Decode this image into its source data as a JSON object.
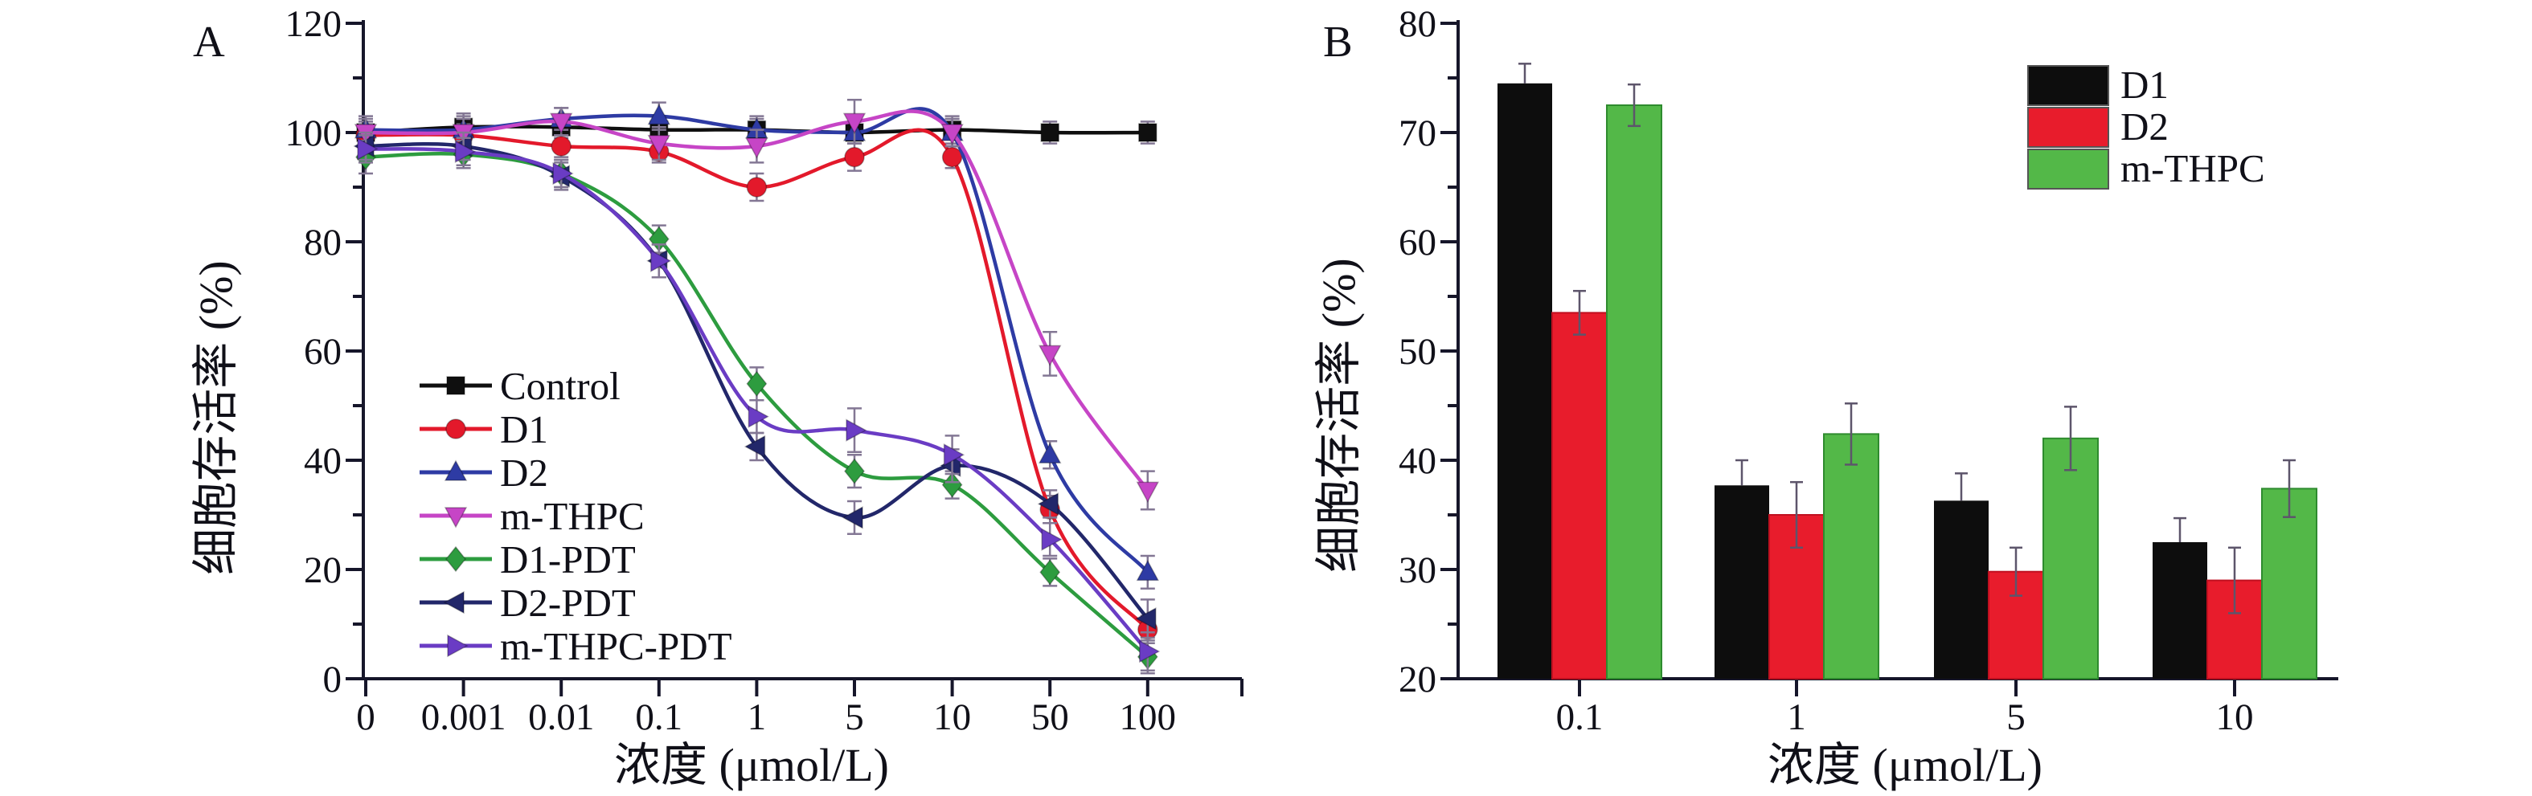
{
  "figure": {
    "background": "#ffffff",
    "axis_color": "#16162a",
    "description_visible_text_only": true
  },
  "chart_data": [
    {
      "panel_label": "A",
      "type": "line",
      "title": "",
      "xlabel": "浓度 (μmol/L)",
      "ylabel": "细胞存活率 (%)",
      "x_tick_labels": [
        "0",
        "0.001",
        "0.01",
        "0.1",
        "1",
        "5",
        "10",
        "50",
        "100"
      ],
      "y_tick_labels": [
        "0",
        "20",
        "40",
        "60",
        "80",
        "100",
        "120"
      ],
      "ylim": [
        0,
        120
      ],
      "y_major_step": 20,
      "y_minor_step": 10,
      "x_scale": "categorical concentration steps",
      "grid": "off",
      "legend_position": "inside lower-left",
      "error_bar_color": "#837794",
      "series": [
        {
          "name": "Control",
          "color": "#0f0f0f",
          "marker": "square",
          "values": [
            100,
            101,
            101,
            100.5,
            100.5,
            100,
            100.5,
            100,
            100
          ],
          "err": [
            2,
            2.5,
            2,
            2,
            2,
            2,
            2.5,
            2,
            2
          ]
        },
        {
          "name": "D1",
          "color": "#e3192b",
          "marker": "circle",
          "values": [
            99.5,
            99.5,
            97.5,
            96.5,
            90,
            95.5,
            95.5,
            31,
            9
          ],
          "err": [
            2,
            2,
            2,
            2,
            2.5,
            2.5,
            2,
            2.5,
            2.5
          ]
        },
        {
          "name": "D2",
          "color": "#2e3ba4",
          "marker": "triangle-up",
          "values": [
            100.5,
            100.5,
            102.5,
            103,
            100.5,
            100,
            100,
            41,
            19.5
          ],
          "err": [
            2.5,
            2.5,
            2,
            2.5,
            2.5,
            2,
            2.5,
            2.5,
            3
          ]
        },
        {
          "name": "m-THPC",
          "color": "#c645c6",
          "marker": "triangle-down",
          "values": [
            100,
            100,
            102,
            98,
            97.5,
            102,
            100,
            59.5,
            34.5
          ],
          "err": [
            2.5,
            2.5,
            2.5,
            3,
            3,
            4,
            2.5,
            4,
            3.5
          ]
        },
        {
          "name": "D1-PDT",
          "color": "#2d9c3f",
          "marker": "diamond",
          "values": [
            95.5,
            96,
            92.5,
            80.5,
            54,
            38,
            35.5,
            19.5,
            4
          ],
          "err": [
            3,
            2.5,
            2.5,
            2.5,
            3,
            3,
            2.5,
            2.5,
            3
          ]
        },
        {
          "name": "D2-PDT",
          "color": "#22276a",
          "marker": "triangle-left",
          "values": [
            97.5,
            97.5,
            92,
            76.5,
            42.5,
            29.5,
            39,
            32,
            11
          ],
          "err": [
            2.5,
            2.5,
            2.5,
            3,
            2.5,
            3,
            3,
            2.5,
            3.5
          ]
        },
        {
          "name": "m-THPC-PDT",
          "color": "#6a3cc4",
          "marker": "triangle-right",
          "values": [
            97,
            96.5,
            92.5,
            76.5,
            48,
            45.5,
            41,
            25.5,
            5
          ],
          "err": [
            2.5,
            2.5,
            2.5,
            3,
            3,
            4,
            3.5,
            3,
            3.5
          ]
        }
      ]
    },
    {
      "panel_label": "B",
      "type": "bar",
      "title": "",
      "xlabel": "浓度 (μmol/L)",
      "ylabel": "细胞存活率 (%)",
      "categories": [
        "0.1",
        "1",
        "5",
        "10"
      ],
      "y_tick_labels": [
        "20",
        "30",
        "40",
        "50",
        "60",
        "70",
        "80"
      ],
      "ylim": [
        20,
        80
      ],
      "y_major_step": 10,
      "y_minor_step": 5,
      "grid": "off",
      "legend_position": "inside top-right",
      "error_bar_color": "#5d556b",
      "series": [
        {
          "name": "D1",
          "color": "#0d0d0d",
          "edge": "none",
          "values": [
            74.5,
            37.7,
            36.3,
            32.5
          ],
          "err": [
            1.8,
            2.3,
            2.5,
            2.2
          ],
          "error_caps": "top"
        },
        {
          "name": "D2",
          "color": "#e81c2c",
          "edge": "#c01020",
          "values": [
            53.5,
            35.0,
            29.8,
            29.0
          ],
          "err": [
            2.0,
            3.0,
            2.2,
            3.0
          ],
          "error_caps": "both"
        },
        {
          "name": "m-THPC",
          "color": "#53b848",
          "edge": "#2e8b2e",
          "values": [
            72.5,
            42.4,
            42.0,
            37.4
          ],
          "err": [
            1.9,
            2.8,
            2.9,
            2.6
          ],
          "error_caps": "both"
        }
      ]
    }
  ]
}
